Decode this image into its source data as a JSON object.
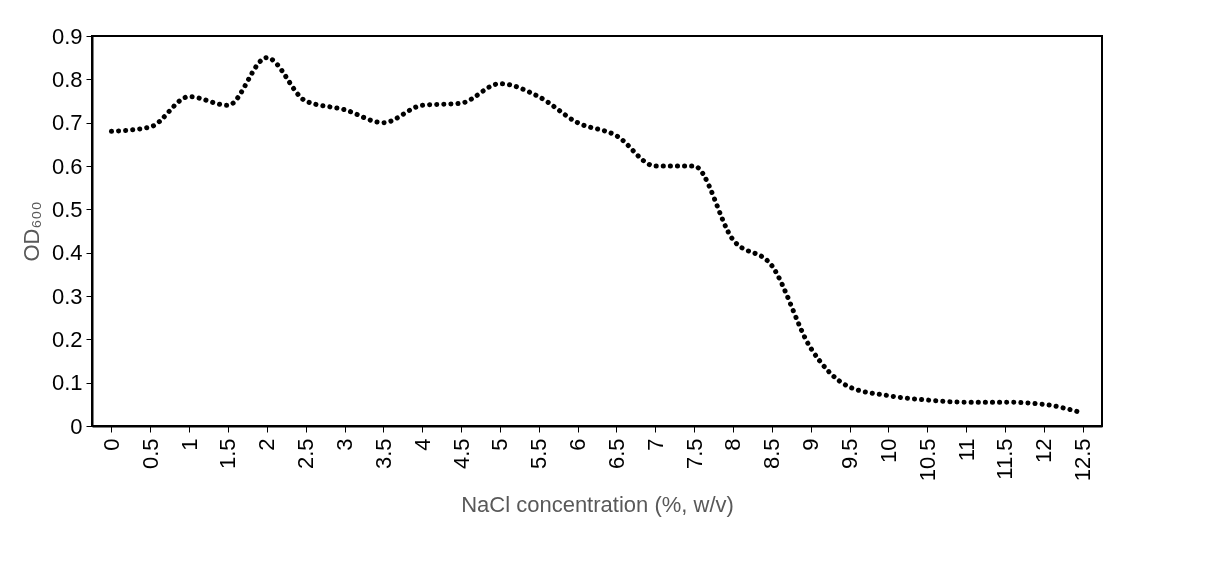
{
  "chart_data": {
    "type": "line",
    "xlabel": "NaCl concentration  (%, w/v)",
    "ylabel": "OD₆₀₀",
    "categories": [
      "0",
      "0.5",
      "1",
      "1.5",
      "2",
      "2.5",
      "3",
      "3.5",
      "4",
      "4.5",
      "5",
      "5.5",
      "6",
      "6.5",
      "7",
      "7.5",
      "8",
      "8.5",
      "9",
      "9.5",
      "10",
      "10.5",
      "11",
      "11.5",
      "12",
      "12.5"
    ],
    "series": [
      {
        "color": "#000000",
        "values": [
          0.68,
          0.69,
          0.76,
          0.74,
          0.85,
          0.75,
          0.73,
          0.7,
          0.74,
          0.745,
          0.79,
          0.76,
          0.7,
          0.67,
          0.6,
          0.6,
          0.43,
          0.37,
          0.18,
          0.09,
          0.07,
          0.06,
          0.055,
          0.055,
          0.05,
          0.03
        ]
      }
    ],
    "ylim": [
      0,
      0.9
    ],
    "yticks": [
      0,
      0.1,
      0.2,
      0.3,
      0.4,
      0.5,
      0.6,
      0.7,
      0.8,
      0.9
    ],
    "line_style": "dotted",
    "marker": "none",
    "grid": false,
    "legend": false
  }
}
